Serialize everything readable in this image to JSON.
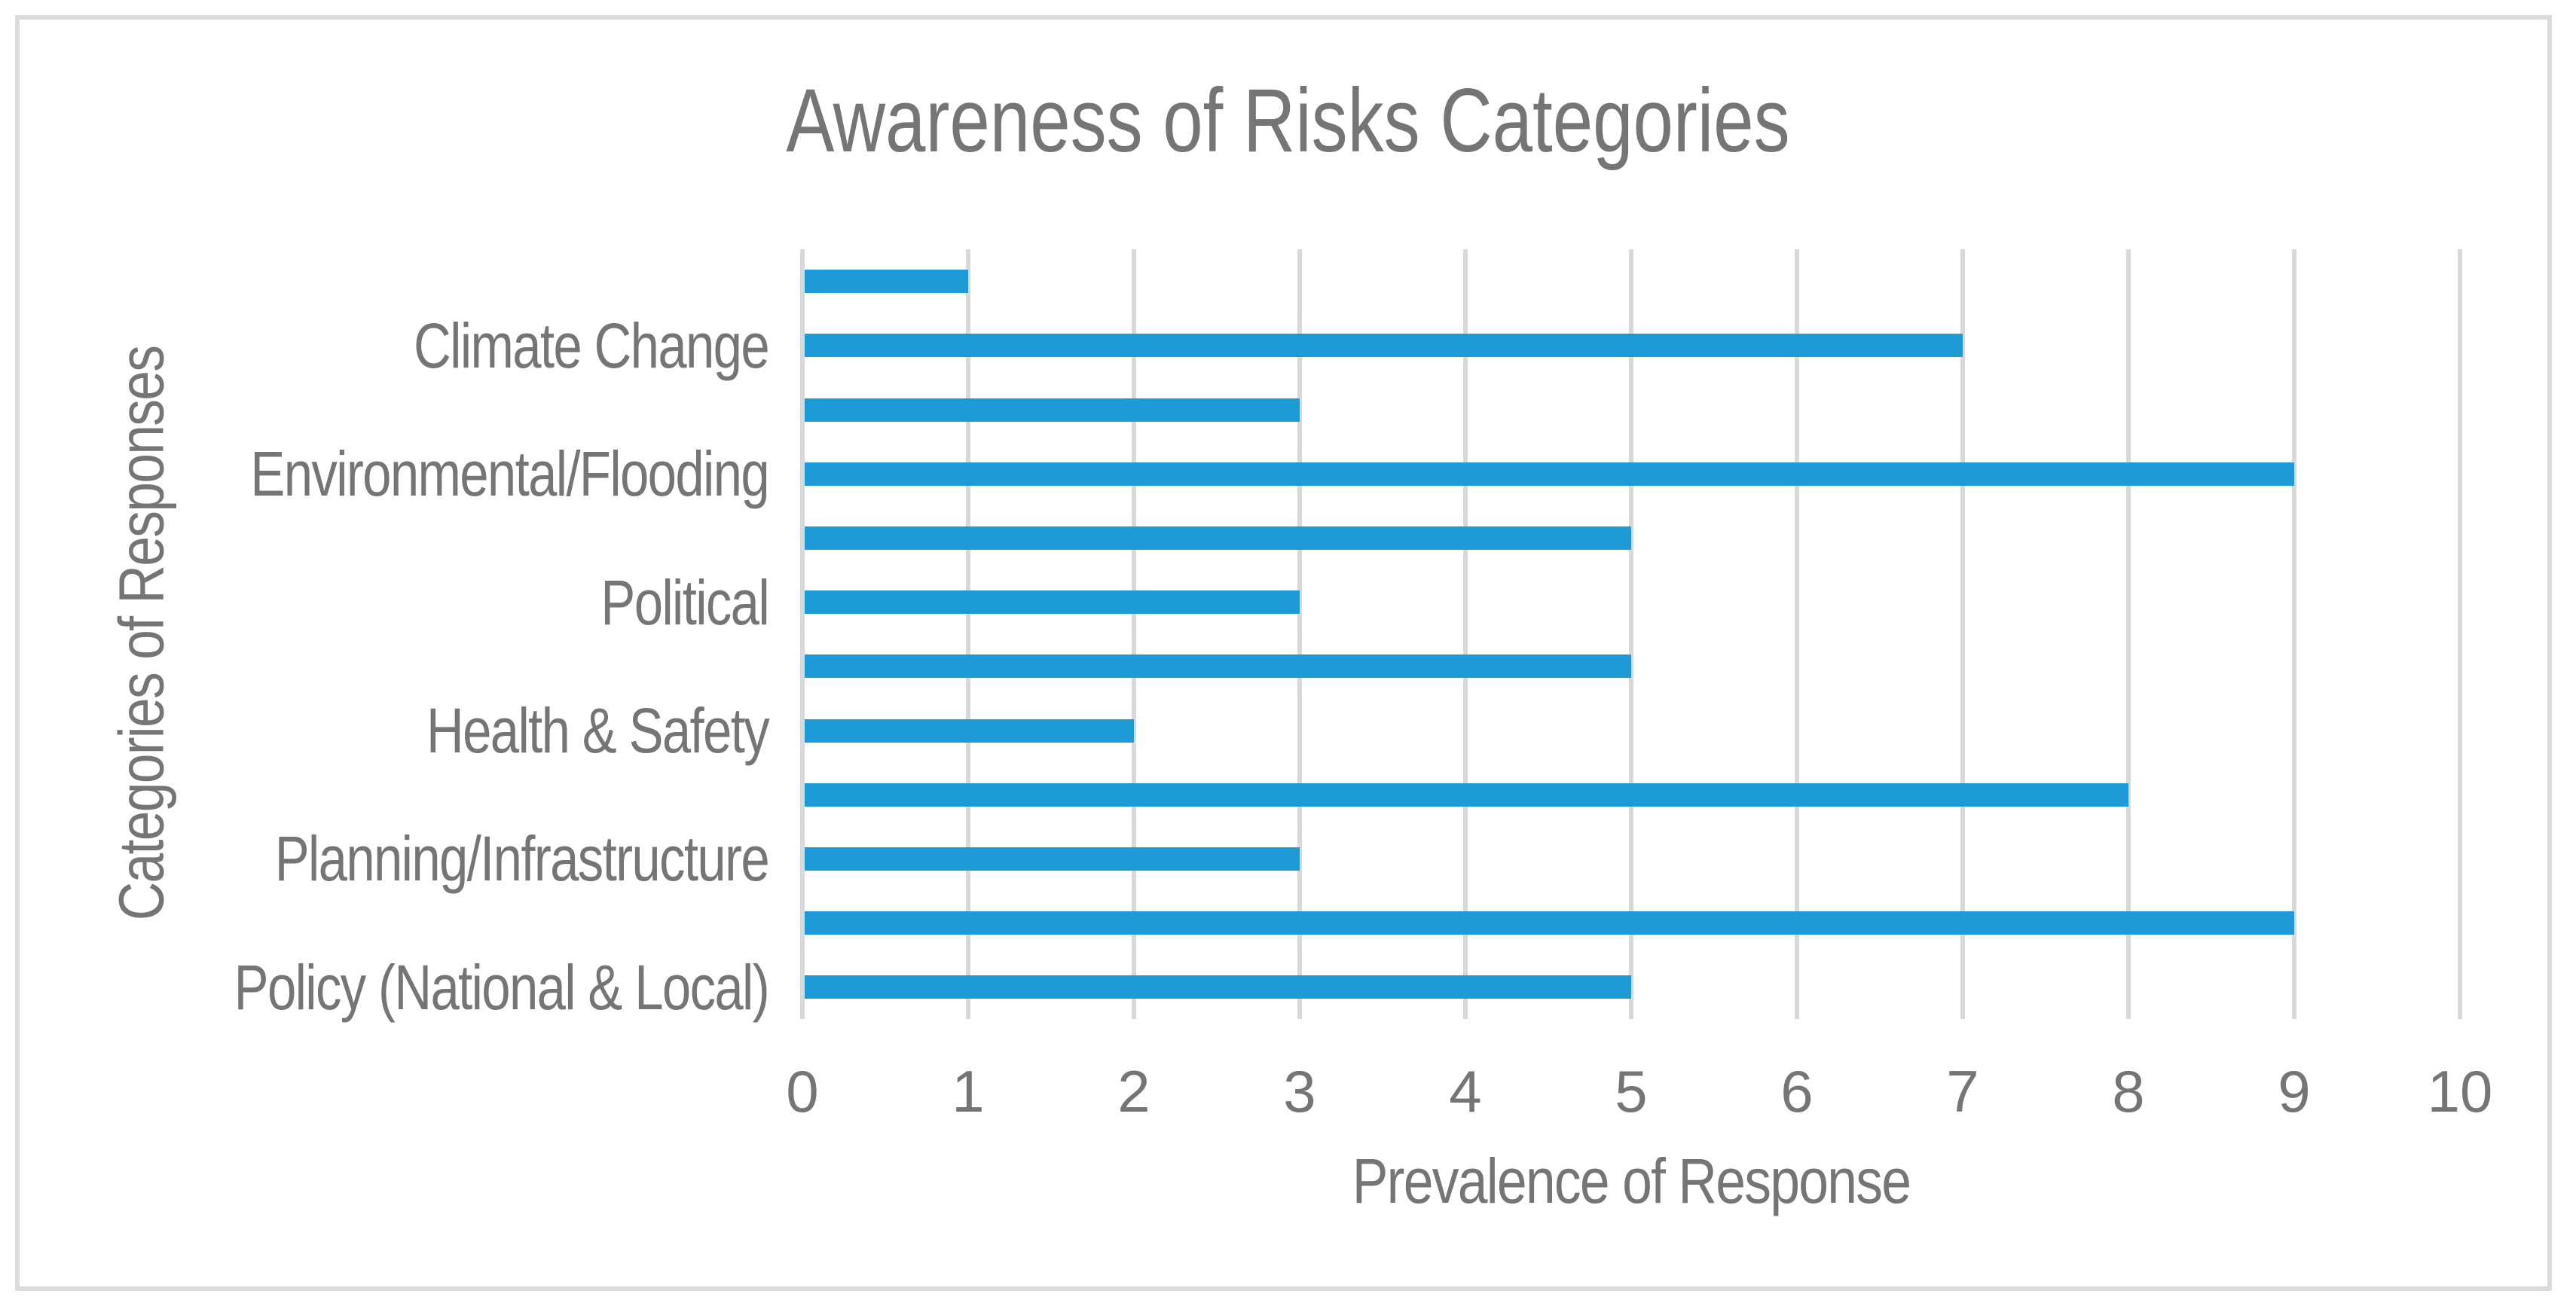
{
  "chart": {
    "title": "Awareness of Risks Categories",
    "x_axis_title": "Prevalence of Response",
    "y_axis_title": "Categories of Responses",
    "colors": {
      "bar": "#1e9ad6",
      "gridline": "#d9d9d9",
      "text": "#757575",
      "frame_border": "#dbdbdb",
      "background": "#ffffff"
    }
  },
  "chart_data": {
    "type": "bar",
    "orientation": "horizontal",
    "title": "Awareness of Risks Categories",
    "xlabel": "Prevalence of Response",
    "ylabel": "Categories of Responses",
    "xlim": [
      0,
      10
    ],
    "xticks": [
      0,
      1,
      2,
      3,
      4,
      5,
      6,
      7,
      8,
      9,
      10
    ],
    "grid": true,
    "legend": false,
    "categories": [
      "Climate Change",
      "Environmental/Flooding",
      "Political",
      "Health & Safety",
      "Planning/Infrastructure",
      "Policy (National & Local)"
    ],
    "bars_top_to_bottom": [
      {
        "label": "",
        "value": 1
      },
      {
        "label": "Climate Change",
        "value": 7
      },
      {
        "label": "",
        "value": 3
      },
      {
        "label": "Environmental/Flooding",
        "value": 9
      },
      {
        "label": "",
        "value": 5
      },
      {
        "label": "Political",
        "value": 3
      },
      {
        "label": "",
        "value": 5
      },
      {
        "label": "Health & Safety",
        "value": 2
      },
      {
        "label": "",
        "value": 8
      },
      {
        "label": "Planning/Infrastructure",
        "value": 3
      },
      {
        "label": "",
        "value": 9
      },
      {
        "label": "Policy (National & Local)",
        "value": 5
      }
    ]
  }
}
